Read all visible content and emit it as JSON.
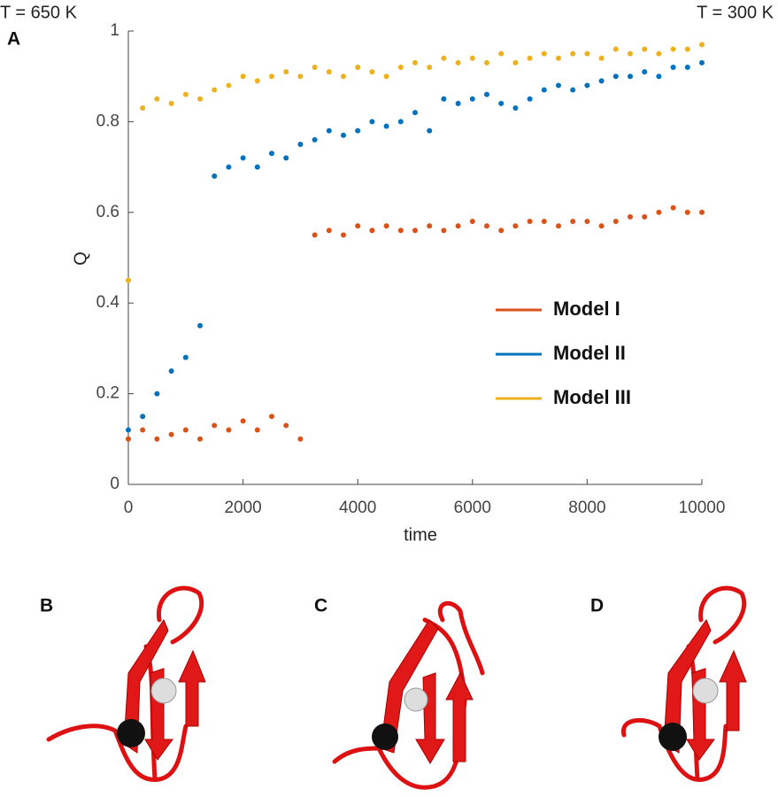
{
  "chart_data": {
    "type": "scatter",
    "panel_label": "A",
    "annotations": [
      "T = 650 K",
      "T = 300 K"
    ],
    "xlabel": "time",
    "ylabel": "Q",
    "x": [
      0,
      250,
      500,
      750,
      1000,
      1250,
      1500,
      1750,
      2000,
      2250,
      2500,
      2750,
      3000,
      3250,
      3500,
      3750,
      4000,
      4250,
      4500,
      4750,
      5000,
      5250,
      5500,
      5750,
      6000,
      6250,
      6500,
      6750,
      7000,
      7250,
      7500,
      7750,
      8000,
      8250,
      8500,
      8750,
      9000,
      9250,
      9500,
      9750,
      10000
    ],
    "series": [
      {
        "name": "Model I",
        "color": "#d95319",
        "values": [
          0.1,
          0.12,
          0.1,
          0.11,
          0.12,
          0.1,
          0.13,
          0.12,
          0.14,
          0.12,
          0.15,
          0.13,
          0.1,
          0.55,
          0.56,
          0.55,
          0.57,
          0.56,
          0.57,
          0.56,
          0.56,
          0.57,
          0.56,
          0.57,
          0.58,
          0.57,
          0.56,
          0.57,
          0.58,
          0.58,
          0.57,
          0.58,
          0.58,
          0.57,
          0.58,
          0.59,
          0.59,
          0.6,
          0.61,
          0.6,
          0.6
        ]
      },
      {
        "name": "Model II",
        "color": "#0072bd",
        "values": [
          0.12,
          0.15,
          0.2,
          0.25,
          0.28,
          0.35,
          0.68,
          0.7,
          0.72,
          0.7,
          0.73,
          0.72,
          0.75,
          0.76,
          0.78,
          0.77,
          0.78,
          0.8,
          0.79,
          0.8,
          0.82,
          0.78,
          0.85,
          0.84,
          0.85,
          0.86,
          0.84,
          0.83,
          0.85,
          0.87,
          0.88,
          0.87,
          0.88,
          0.89,
          0.9,
          0.9,
          0.91,
          0.9,
          0.92,
          0.92,
          0.93
        ]
      },
      {
        "name": "Model III",
        "color": "#edb120",
        "values": [
          0.45,
          0.83,
          0.85,
          0.84,
          0.86,
          0.85,
          0.87,
          0.88,
          0.9,
          0.89,
          0.9,
          0.91,
          0.9,
          0.92,
          0.91,
          0.9,
          0.92,
          0.91,
          0.9,
          0.92,
          0.93,
          0.92,
          0.94,
          0.93,
          0.94,
          0.93,
          0.95,
          0.93,
          0.94,
          0.95,
          0.94,
          0.95,
          0.95,
          0.94,
          0.96,
          0.95,
          0.96,
          0.95,
          0.96,
          0.96,
          0.97
        ]
      }
    ],
    "xlim": [
      0,
      10000
    ],
    "xticks": [
      0,
      2000,
      4000,
      6000,
      8000,
      10000
    ],
    "ylim": [
      0,
      1
    ],
    "yticks": [
      0,
      0.2,
      0.4,
      0.6,
      0.8,
      1
    ],
    "grid": false,
    "legend": "right"
  },
  "panels": [
    {
      "label": "B"
    },
    {
      "label": "C"
    },
    {
      "label": "D"
    }
  ]
}
